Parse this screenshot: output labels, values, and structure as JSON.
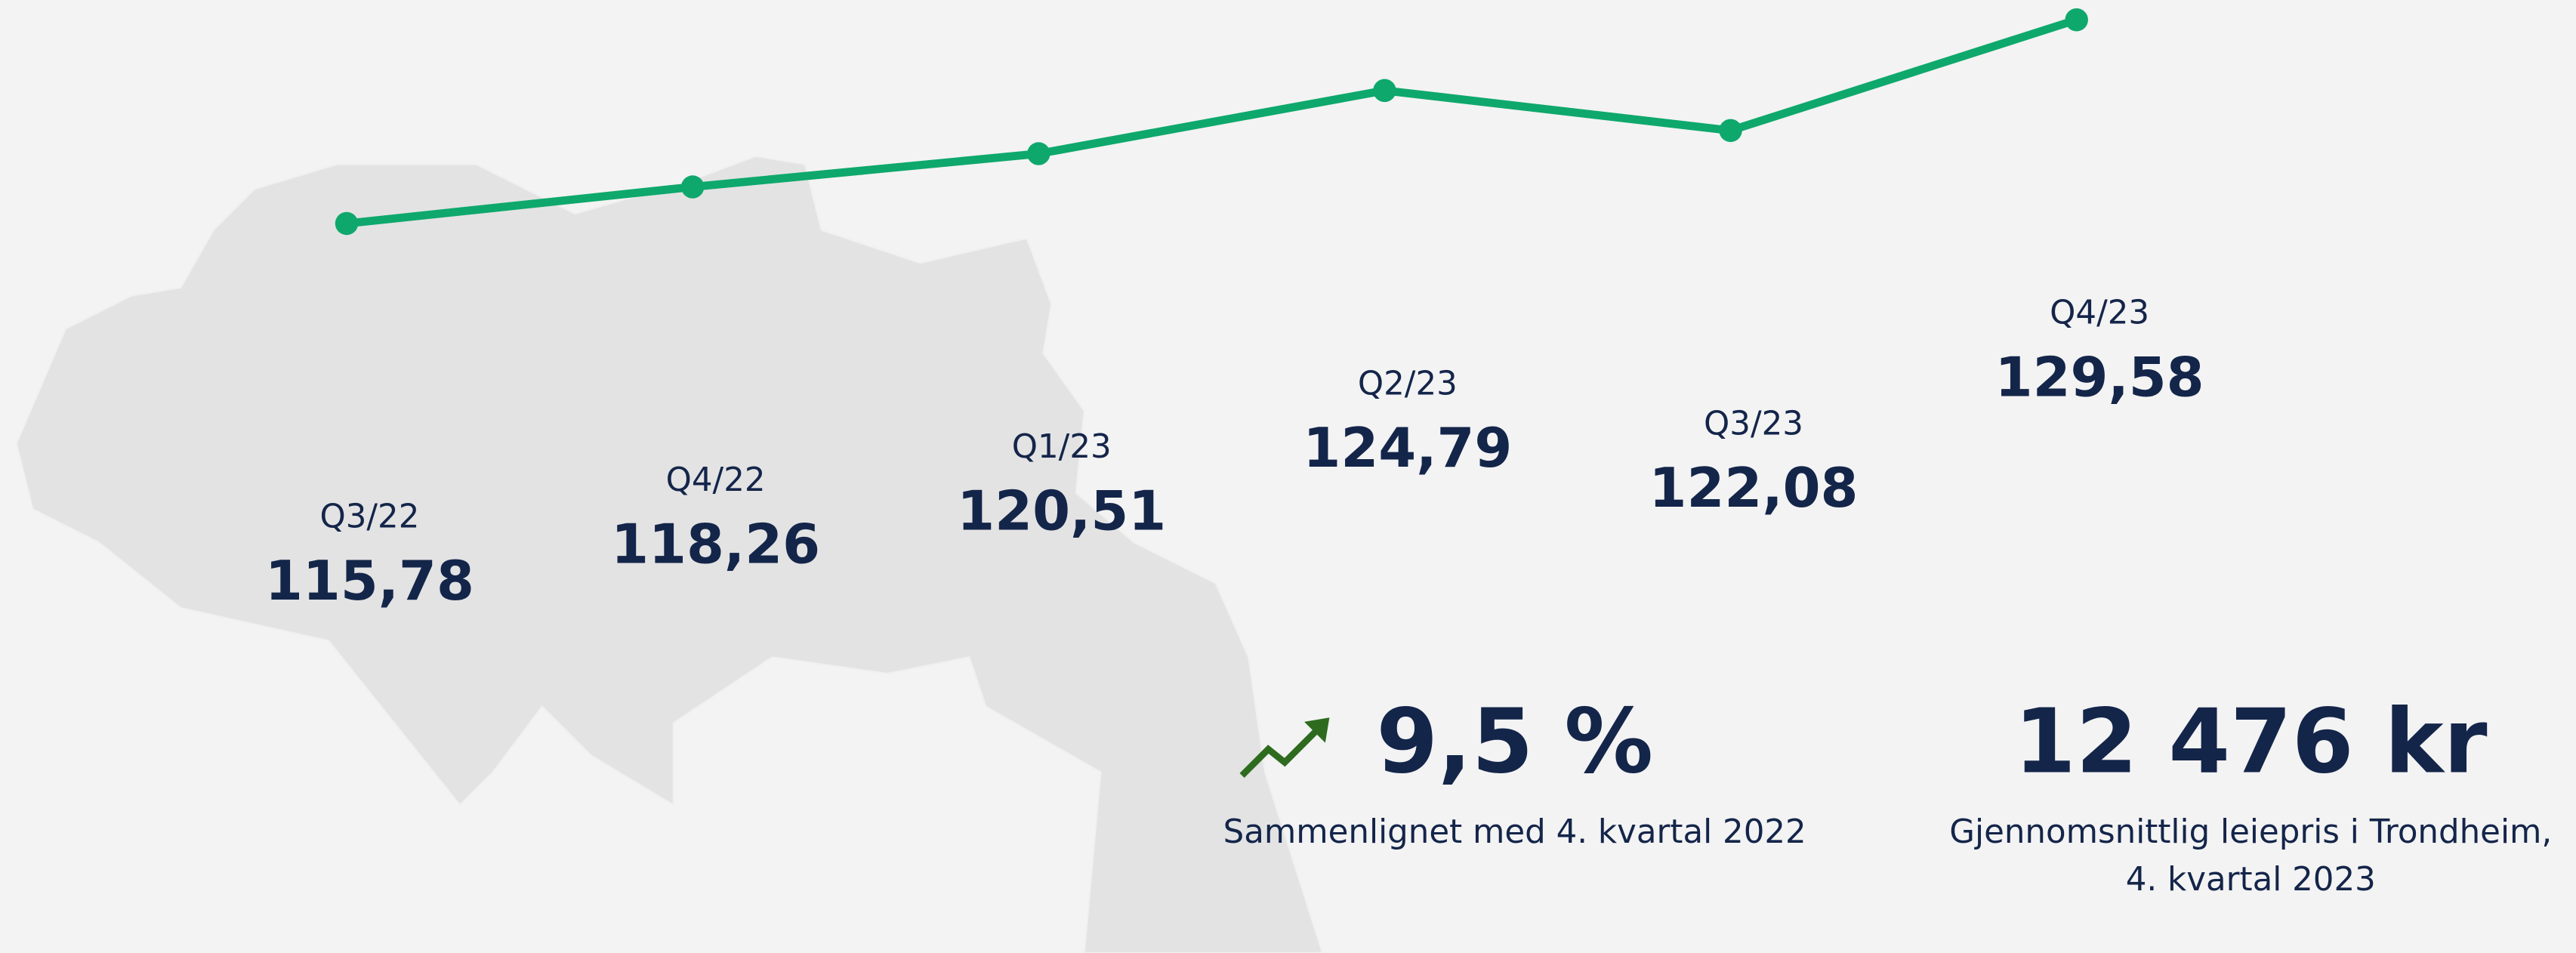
{
  "chart_data": {
    "type": "line",
    "categories": [
      "Q3/22",
      "Q4/22",
      "Q1/23",
      "Q2/23",
      "Q3/23",
      "Q4/23"
    ],
    "values": [
      115.78,
      118.26,
      120.51,
      124.79,
      122.08,
      129.58
    ],
    "value_labels": [
      "115,78",
      "118,26",
      "120,51",
      "124,79",
      "122,08",
      "129,58"
    ],
    "color": "#0ea86c"
  },
  "stats": {
    "change": "9,5 %",
    "change_caption": "Sammenlignet med 4. kvartal 2022",
    "price": "12 476 kr",
    "price_caption_1": "Gjennomsnittlig leiepris i Trondheim,",
    "price_caption_2": "4. kvartal 2023"
  }
}
